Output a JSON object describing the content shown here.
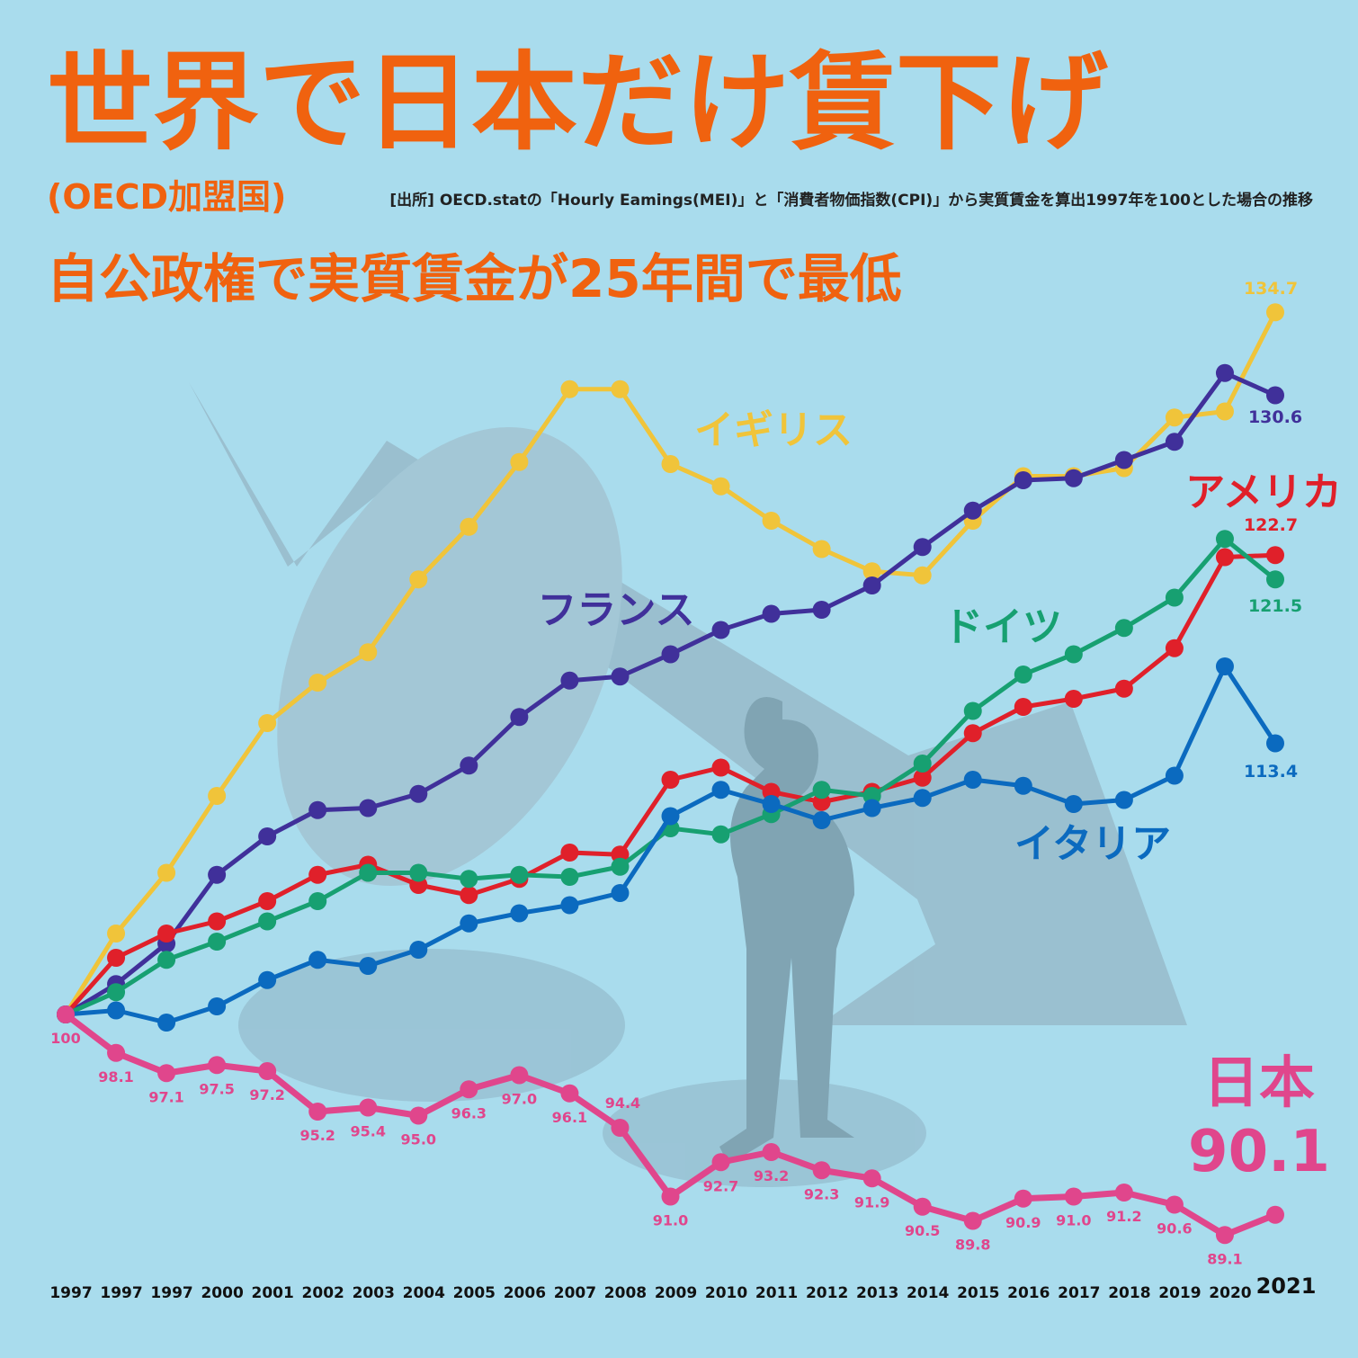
{
  "chart_data": {
    "type": "line",
    "title": "世界で日本だけ賃下げ",
    "subtitle": "(OECD加盟国)",
    "source": "[出所] OECD.statの「Hourly Eamings(MEI)」と「消費者物価指数(CPI)」から実質賃金を算出1997年を100とした場合の推移",
    "headline": "自公政権で実質賃金が25年間で最低",
    "categories": [
      "1997",
      "1997",
      "1997",
      "2000",
      "2001",
      "2002",
      "2003",
      "2004",
      "2005",
      "2006",
      "2007",
      "2008",
      "2009",
      "2010",
      "2011",
      "2012",
      "2013",
      "2014",
      "2015",
      "2016",
      "2017",
      "2018",
      "2019",
      "2020",
      "2021"
    ],
    "ylim": [
      85,
      140
    ],
    "series": [
      {
        "name": "イギリス",
        "color": "#f0c43a",
        "values": [
          100,
          104.0,
          107.0,
          110.8,
          114.4,
          116.4,
          117.9,
          121.5,
          124.1,
          127.3,
          130.9,
          130.9,
          127.2,
          126.1,
          124.4,
          123.0,
          121.9,
          121.7,
          124.4,
          126.6,
          126.6,
          127.0,
          129.5,
          129.8,
          134.7
        ]
      },
      {
        "name": "フランス",
        "color": "#40309a",
        "values": [
          100,
          101.5,
          103.5,
          106.9,
          108.8,
          110.1,
          110.2,
          110.9,
          112.3,
          114.7,
          116.5,
          116.7,
          117.8,
          119.0,
          119.8,
          120.0,
          121.2,
          123.1,
          124.9,
          126.4,
          126.5,
          127.4,
          128.3,
          131.7,
          130.6
        ]
      },
      {
        "name": "アメリカ",
        "color": "#e0202a",
        "values": [
          100,
          102.8,
          104.0,
          104.6,
          105.6,
          106.9,
          107.4,
          106.4,
          105.9,
          106.7,
          108.0,
          107.9,
          111.6,
          112.2,
          111.0,
          110.5,
          111.0,
          111.7,
          113.9,
          115.2,
          115.6,
          116.1,
          118.1,
          122.6,
          122.7
        ]
      },
      {
        "name": "ドイツ",
        "color": "#17a071",
        "values": [
          100,
          101.1,
          102.7,
          103.6,
          104.6,
          105.6,
          107.0,
          107.0,
          106.7,
          106.9,
          106.8,
          107.3,
          109.2,
          108.9,
          109.9,
          111.1,
          110.8,
          112.4,
          115.0,
          116.8,
          117.8,
          119.1,
          120.6,
          123.5,
          121.5
        ]
      },
      {
        "name": "イタリア",
        "color": "#0b6abf",
        "values": [
          100,
          100.2,
          99.6,
          100.4,
          101.7,
          102.7,
          102.4,
          103.2,
          104.5,
          105.0,
          105.4,
          106.0,
          109.8,
          111.1,
          110.4,
          109.6,
          110.2,
          110.7,
          111.6,
          111.3,
          110.4,
          110.6,
          111.8,
          117.2,
          113.4
        ]
      },
      {
        "name": "日本",
        "color": "#e0468c",
        "values": [
          100,
          98.1,
          97.1,
          97.5,
          97.2,
          95.2,
          95.4,
          95.0,
          96.3,
          97.0,
          96.1,
          94.4,
          91.0,
          92.7,
          93.2,
          92.3,
          91.9,
          90.5,
          89.8,
          90.9,
          91.0,
          91.2,
          90.6,
          89.1,
          90.1
        ],
        "value_labels": [
          "100",
          "98.1",
          "97.1",
          "97.5",
          "97.2",
          "95.2",
          "95.4",
          "95.0",
          "96.3",
          "97.0",
          "96.1",
          "94.4",
          "91.0",
          "92.7",
          "93.2",
          "92.3",
          "91.9",
          "90.5",
          "89.8",
          "90.9",
          "91.0",
          "91.2",
          "90.6",
          "89.1",
          "90.1"
        ]
      }
    ]
  }
}
